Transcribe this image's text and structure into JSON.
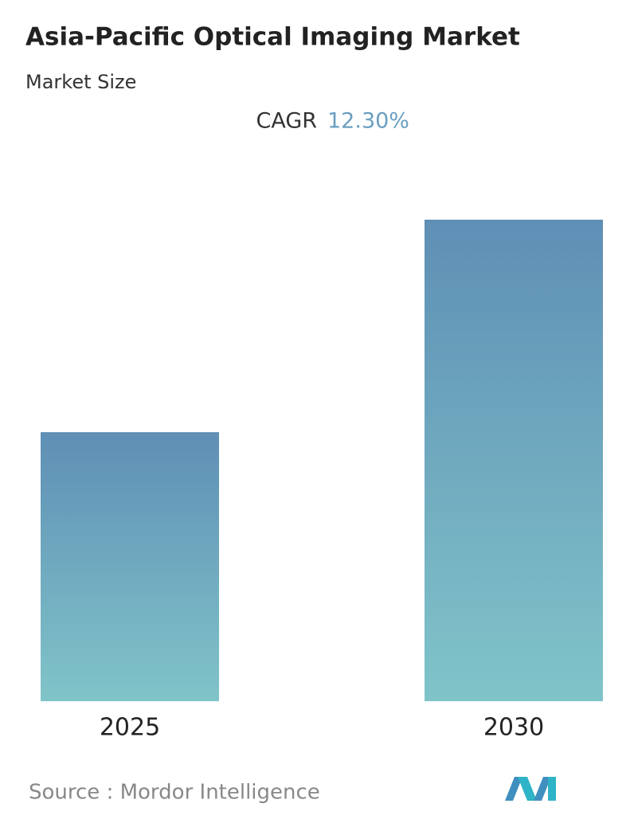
{
  "chart_data": {
    "type": "bar",
    "title": "Asia-Pacific Optical Imaging Market",
    "subtitle": "Market Size",
    "cagr_label": "CAGR",
    "cagr_value": "12.30%",
    "categories": [
      "2025",
      "2030"
    ],
    "values": [
      1,
      1.79
    ],
    "source": "Source :  Mordor Intelligence"
  }
}
